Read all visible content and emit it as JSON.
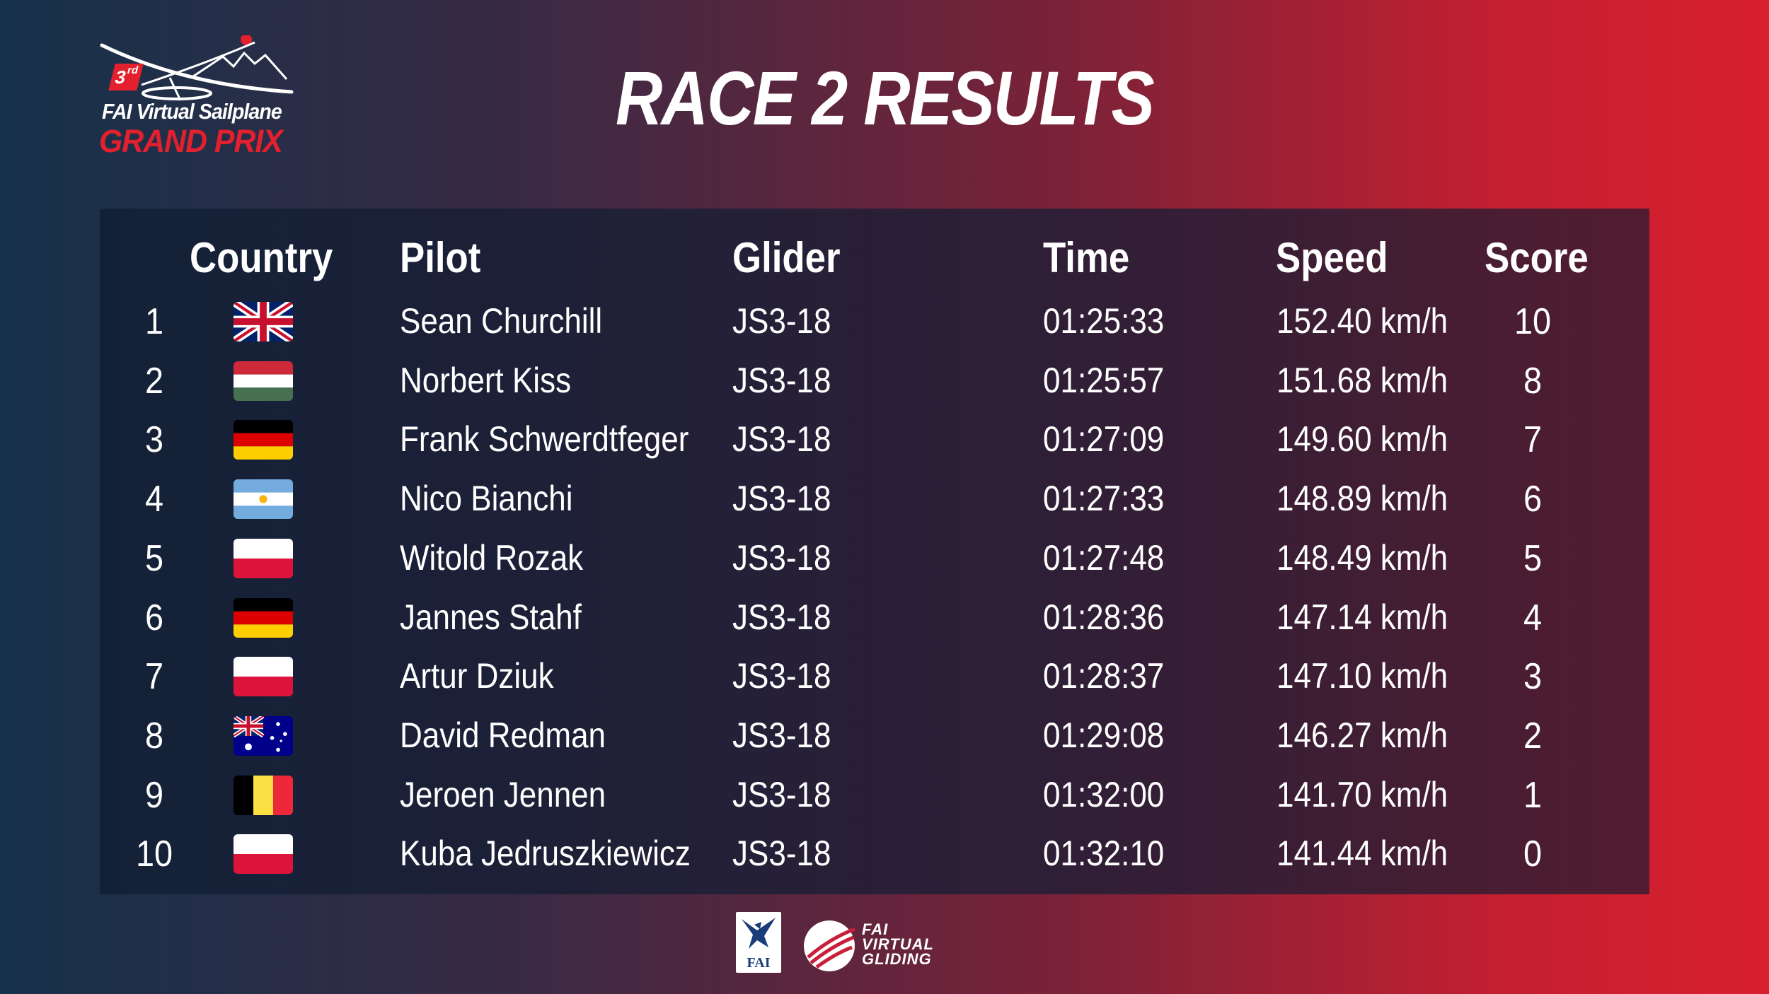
{
  "logo": {
    "ordinal": "3",
    "ordinal_suffix": "rd",
    "line1": "FAI Virtual Sailplane",
    "line2": "GRAND PRIX"
  },
  "title": "RACE 2 RESULTS",
  "headers": {
    "country": "Country",
    "pilot": "Pilot",
    "glider": "Glider",
    "time": "Time",
    "speed": "Speed",
    "score": "Score"
  },
  "rows": [
    {
      "rank": "1",
      "flag": "uk-flag",
      "pilot": "Sean Churchill",
      "glider": "JS3-18",
      "time": "01:25:33",
      "speed": "152.40 km/h",
      "score": "10"
    },
    {
      "rank": "2",
      "flag": "hungary-flag",
      "pilot": "Norbert Kiss",
      "glider": "JS3-18",
      "time": "01:25:57",
      "speed": "151.68 km/h",
      "score": "8"
    },
    {
      "rank": "3",
      "flag": "germany-flag",
      "pilot": "Frank Schwerdtfeger",
      "glider": "JS3-18",
      "time": "01:27:09",
      "speed": "149.60 km/h",
      "score": "7"
    },
    {
      "rank": "4",
      "flag": "argentina-flag",
      "pilot": "Nico Bianchi",
      "glider": "JS3-18",
      "time": "01:27:33",
      "speed": "148.89 km/h",
      "score": "6"
    },
    {
      "rank": "5",
      "flag": "poland-flag",
      "pilot": "Witold Rozak",
      "glider": "JS3-18",
      "time": "01:27:48",
      "speed": "148.49 km/h",
      "score": "5"
    },
    {
      "rank": "6",
      "flag": "germany-flag",
      "pilot": "Jannes Stahf",
      "glider": "JS3-18",
      "time": "01:28:36",
      "speed": "147.14 km/h",
      "score": "4"
    },
    {
      "rank": "7",
      "flag": "poland-flag",
      "pilot": "Artur Dziuk",
      "glider": "JS3-18",
      "time": "01:28:37",
      "speed": "147.10 km/h",
      "score": "3"
    },
    {
      "rank": "8",
      "flag": "australia-flag",
      "pilot": "David Redman",
      "glider": "JS3-18",
      "time": "01:29:08",
      "speed": "146.27 km/h",
      "score": "2"
    },
    {
      "rank": "9",
      "flag": "belgium-flag",
      "pilot": "Jeroen Jennen",
      "glider": "JS3-18",
      "time": "01:32:00",
      "speed": "141.70 km/h",
      "score": "1"
    },
    {
      "rank": "10",
      "flag": "poland-flag",
      "pilot": "Kuba Jedruszkiewicz",
      "glider": "JS3-18",
      "time": "01:32:10",
      "speed": "141.44 km/h",
      "score": "0"
    }
  ],
  "footer": {
    "fai_logo_text": "FAI",
    "virtual_gliding_text": [
      "FAI",
      "VIRTUAL",
      "GLIDING"
    ]
  },
  "colors": {
    "accent_red": "#e3202e",
    "bg_left": "#16314a",
    "bg_right": "#d8202f",
    "panel": "#14223a"
  }
}
